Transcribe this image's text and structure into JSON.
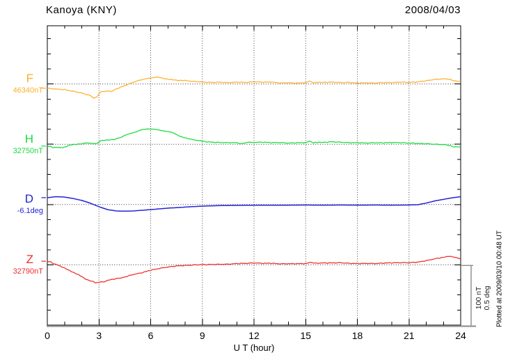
{
  "header": {
    "title": "Kanoya (KNY)",
    "date": "2008/04/03"
  },
  "footer": {
    "plotted_at": "Plotted at 2009/03/10 00:48 UT"
  },
  "scale_legend": {
    "line1": "100 nT",
    "line2": "0.5 deg"
  },
  "chart_data": {
    "type": "line",
    "title": "Kanoya (KNY)",
    "date": "2008/04/03",
    "xlabel": "U T (hour)",
    "x_range": [
      0,
      24
    ],
    "x_ticks": [
      0,
      3,
      6,
      9,
      12,
      15,
      18,
      21,
      24
    ],
    "grid": "dotted vertical lines every 3 h; dotted horizontal baseline per component; minor ticks every 1 h and every 25 nT",
    "legend_position": "left margin, one colored label per stacked trace",
    "scale_bar": {
      "lines": [
        "100 nT",
        "0.5 deg"
      ],
      "meaning": "vertical bar at right spans 100 nT (0.5 deg for D)"
    },
    "series": [
      {
        "id": "F",
        "label": "F",
        "baseline_label": "46340nT",
        "baseline_value": 46340,
        "unit": "nT",
        "color": "#FFAE2A",
        "points": [
          [
            0,
            -7
          ],
          [
            0.5,
            -8
          ],
          [
            1,
            -9
          ],
          [
            1.5,
            -11.5
          ],
          [
            2,
            -15
          ],
          [
            2.5,
            -19.5
          ],
          [
            2.7,
            -23
          ],
          [
            2.9,
            -21.5
          ],
          [
            3.05,
            -13
          ],
          [
            3.4,
            -12
          ],
          [
            3.7,
            -12.5
          ],
          [
            4,
            -8.5
          ],
          [
            4.5,
            -2.5
          ],
          [
            5,
            3.5
          ],
          [
            5.5,
            8
          ],
          [
            6,
            10.5
          ],
          [
            6.4,
            10.5
          ],
          [
            6.8,
            9
          ],
          [
            7.2,
            7.5
          ],
          [
            7.6,
            6
          ],
          [
            8,
            5
          ],
          [
            8.5,
            4
          ],
          [
            9,
            3.5
          ],
          [
            9.5,
            3
          ],
          [
            10,
            3.5
          ],
          [
            10.5,
            2.5
          ],
          [
            11,
            3
          ],
          [
            11.5,
            2
          ],
          [
            12,
            3
          ],
          [
            12.5,
            2.5
          ],
          [
            13,
            3
          ],
          [
            13.5,
            2
          ],
          [
            14,
            2.5
          ],
          [
            14.5,
            2
          ],
          [
            15,
            2.5
          ],
          [
            15.2,
            5
          ],
          [
            15.45,
            2.5
          ],
          [
            16,
            2
          ],
          [
            16.5,
            2.5
          ],
          [
            17,
            2
          ],
          [
            17.5,
            2.5
          ],
          [
            18,
            2
          ],
          [
            18.5,
            2.5
          ],
          [
            19,
            2
          ],
          [
            19.5,
            2.5
          ],
          [
            20,
            2
          ],
          [
            20.5,
            2.5
          ],
          [
            21,
            2
          ],
          [
            21.5,
            3
          ],
          [
            22,
            5.5
          ],
          [
            22.5,
            8
          ],
          [
            23,
            9
          ],
          [
            23.4,
            7.5
          ],
          [
            23.7,
            5
          ],
          [
            24,
            3
          ]
        ]
      },
      {
        "id": "H",
        "label": "H",
        "baseline_label": "32750nT",
        "baseline_value": 32750,
        "unit": "nT",
        "color": "#17DC3C",
        "points": [
          [
            0,
            -3
          ],
          [
            0.3,
            -5
          ],
          [
            0.7,
            -6.5
          ],
          [
            1,
            -4.5
          ],
          [
            1.3,
            -2
          ],
          [
            1.7,
            -0.5
          ],
          [
            2,
            0.5
          ],
          [
            2.3,
            1.5
          ],
          [
            2.6,
            1.5
          ],
          [
            2.9,
            1
          ],
          [
            3.05,
            6
          ],
          [
            3.3,
            7
          ],
          [
            3.6,
            6.5
          ],
          [
            3.9,
            8
          ],
          [
            4.2,
            10.5
          ],
          [
            4.6,
            15
          ],
          [
            5,
            20
          ],
          [
            5.4,
            23.5
          ],
          [
            5.8,
            25
          ],
          [
            6.2,
            25
          ],
          [
            6.6,
            23.5
          ],
          [
            7,
            21
          ],
          [
            7.4,
            17
          ],
          [
            7.8,
            13
          ],
          [
            8.2,
            9
          ],
          [
            8.6,
            6.5
          ],
          [
            9,
            5
          ],
          [
            9.5,
            4
          ],
          [
            10,
            3.5
          ],
          [
            10.5,
            3
          ],
          [
            11,
            2.5
          ],
          [
            11.3,
            1
          ],
          [
            11.6,
            3
          ],
          [
            12,
            2.5
          ],
          [
            12.5,
            3
          ],
          [
            13,
            2.5
          ],
          [
            13.5,
            3
          ],
          [
            14,
            2.5
          ],
          [
            14.5,
            3
          ],
          [
            15,
            3
          ],
          [
            15.2,
            5.5
          ],
          [
            15.45,
            3
          ],
          [
            16,
            2.5
          ],
          [
            16.5,
            3.5
          ],
          [
            17,
            3
          ],
          [
            17.5,
            2.5
          ],
          [
            18,
            3
          ],
          [
            18.5,
            2.5
          ],
          [
            19,
            3
          ],
          [
            19.5,
            2.5
          ],
          [
            20,
            2.5
          ],
          [
            20.5,
            2
          ],
          [
            21,
            1.5
          ],
          [
            21.5,
            1
          ],
          [
            22,
            1
          ],
          [
            22.5,
            0.5
          ],
          [
            23,
            0
          ],
          [
            23.4,
            -2.5
          ],
          [
            23.7,
            -4.5
          ],
          [
            24,
            -5
          ]
        ]
      },
      {
        "id": "D",
        "label": "D",
        "baseline_label": "-6.1deg",
        "baseline_value": -6.1,
        "unit": "deg",
        "color": "#2323D6",
        "points": [
          [
            0,
            0.057
          ],
          [
            0.5,
            0.065
          ],
          [
            1,
            0.062
          ],
          [
            1.5,
            0.05
          ],
          [
            2,
            0.034
          ],
          [
            2.5,
            0.011
          ],
          [
            3,
            -0.018
          ],
          [
            3.5,
            -0.042
          ],
          [
            4,
            -0.053
          ],
          [
            4.5,
            -0.055
          ],
          [
            5,
            -0.053
          ],
          [
            5.5,
            -0.048
          ],
          [
            6,
            -0.042
          ],
          [
            6.5,
            -0.036
          ],
          [
            7,
            -0.03
          ],
          [
            7.5,
            -0.026
          ],
          [
            8,
            -0.021
          ],
          [
            8.5,
            -0.017
          ],
          [
            9,
            -0.013
          ],
          [
            9.5,
            -0.011
          ],
          [
            10,
            -0.009
          ],
          [
            11,
            -0.007
          ],
          [
            12,
            -0.006
          ],
          [
            13,
            -0.005
          ],
          [
            14,
            -0.005
          ],
          [
            15,
            -0.004
          ],
          [
            16,
            -0.005
          ],
          [
            17,
            -0.004
          ],
          [
            18,
            -0.005
          ],
          [
            19,
            -0.004
          ],
          [
            20,
            -0.005
          ],
          [
            21,
            -0.004
          ],
          [
            21.5,
            -0.002
          ],
          [
            22,
            0.012
          ],
          [
            22.5,
            0.03
          ],
          [
            23,
            0.043
          ],
          [
            23.5,
            0.055
          ],
          [
            24,
            0.065
          ]
        ]
      },
      {
        "id": "Z",
        "label": "Z",
        "baseline_label": "32790nT",
        "baseline_value": 32790,
        "unit": "nT",
        "color": "#EE2A2A",
        "points": [
          [
            0,
            6
          ],
          [
            0.3,
            3
          ],
          [
            0.6,
            0
          ],
          [
            1,
            -5
          ],
          [
            1.4,
            -11
          ],
          [
            1.8,
            -17
          ],
          [
            2.2,
            -23
          ],
          [
            2.5,
            -27
          ],
          [
            2.8,
            -30
          ],
          [
            3,
            -29.5
          ],
          [
            3.3,
            -28
          ],
          [
            3.6,
            -25.5
          ],
          [
            3.9,
            -23.5
          ],
          [
            4.2,
            -22.5
          ],
          [
            4.5,
            -20
          ],
          [
            5,
            -15.5
          ],
          [
            5.5,
            -12.5
          ],
          [
            6,
            -8.5
          ],
          [
            6.5,
            -6
          ],
          [
            7,
            -4
          ],
          [
            7.5,
            -2.5
          ],
          [
            8,
            -1.5
          ],
          [
            8.5,
            -0.5
          ],
          [
            9,
            0.5
          ],
          [
            9.5,
            1
          ],
          [
            10,
            1.5
          ],
          [
            10.5,
            1.5
          ],
          [
            11,
            2
          ],
          [
            11.5,
            2
          ],
          [
            12,
            2.5
          ],
          [
            12.5,
            2
          ],
          [
            13,
            2.5
          ],
          [
            13.5,
            2
          ],
          [
            14,
            2.5
          ],
          [
            14.5,
            2.5
          ],
          [
            15,
            2.5
          ],
          [
            15.2,
            4
          ],
          [
            15.5,
            2.5
          ],
          [
            16,
            2.5
          ],
          [
            16.5,
            2.5
          ],
          [
            17,
            3
          ],
          [
            17.5,
            2.5
          ],
          [
            18,
            2.5
          ],
          [
            18.5,
            3
          ],
          [
            19,
            2.5
          ],
          [
            19.5,
            3
          ],
          [
            20,
            3
          ],
          [
            20.5,
            3
          ],
          [
            21,
            3
          ],
          [
            21.5,
            4
          ],
          [
            22,
            7
          ],
          [
            22.5,
            10.5
          ],
          [
            23,
            13
          ],
          [
            23.3,
            13.5
          ],
          [
            23.7,
            12
          ],
          [
            24,
            9.5
          ]
        ]
      }
    ]
  }
}
